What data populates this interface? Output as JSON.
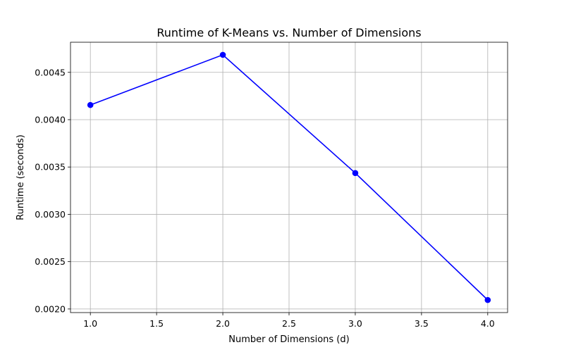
{
  "chart_data": {
    "type": "line",
    "title": "Runtime of K-Means vs. Number of Dimensions",
    "xlabel": "Number of Dimensions (d)",
    "ylabel": "Runtime (seconds)",
    "x": [
      1.0,
      2.0,
      3.0,
      4.0
    ],
    "series": [
      {
        "values": [
          0.004155,
          0.004685,
          0.003436,
          0.002095
        ],
        "color": "#0000ff",
        "marker": "circle"
      }
    ],
    "xlim": [
      0.85,
      4.15
    ],
    "ylim": [
      0.001962,
      0.004818
    ],
    "xticks": [
      1.0,
      1.5,
      2.0,
      2.5,
      3.0,
      3.5,
      4.0
    ],
    "xtick_labels": [
      "1.0",
      "1.5",
      "2.0",
      "2.5",
      "3.0",
      "3.5",
      "4.0"
    ],
    "yticks": [
      0.002,
      0.0025,
      0.003,
      0.0035,
      0.004,
      0.0045
    ],
    "ytick_labels": [
      "0.0020",
      "0.0025",
      "0.0030",
      "0.0035",
      "0.0040",
      "0.0045"
    ],
    "grid": true,
    "legend": "none"
  }
}
